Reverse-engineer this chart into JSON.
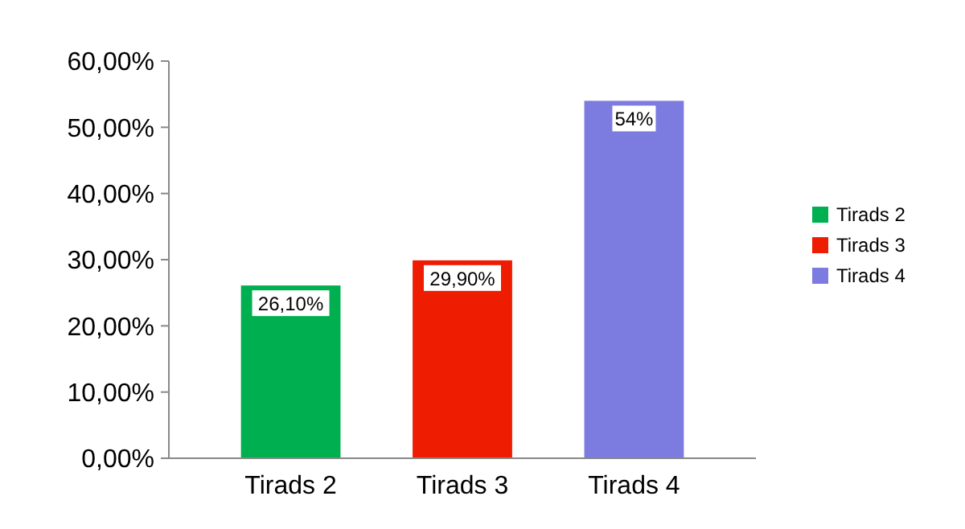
{
  "chart_data": {
    "type": "bar",
    "categories": [
      "Tirads 2",
      "Tirads 3",
      "Tirads 4"
    ],
    "stacked": true,
    "series": [
      {
        "name": "Tirads 2",
        "color": "#00b050",
        "values": [
          26.1,
          null,
          null
        ],
        "value_labels": [
          "26,10%",
          null,
          null
        ]
      },
      {
        "name": "Tirads 3",
        "color": "#ee1c00",
        "values": [
          null,
          29.9,
          null
        ],
        "value_labels": [
          null,
          "29,90%",
          null
        ]
      },
      {
        "name": "Tirads 4",
        "color": "#7b7be0",
        "values": [
          null,
          null,
          54
        ],
        "value_labels": [
          null,
          null,
          "54%"
        ]
      }
    ],
    "ylim": [
      0,
      60
    ],
    "yticks": [
      {
        "value": 0,
        "label": "0,00%"
      },
      {
        "value": 10,
        "label": "10,00%"
      },
      {
        "value": 20,
        "label": "20,00%"
      },
      {
        "value": 30,
        "label": "30,00%"
      },
      {
        "value": 40,
        "label": "40,00%"
      },
      {
        "value": 50,
        "label": "50,00%"
      },
      {
        "value": 60,
        "label": "60,00%"
      }
    ],
    "legend": "right"
  }
}
